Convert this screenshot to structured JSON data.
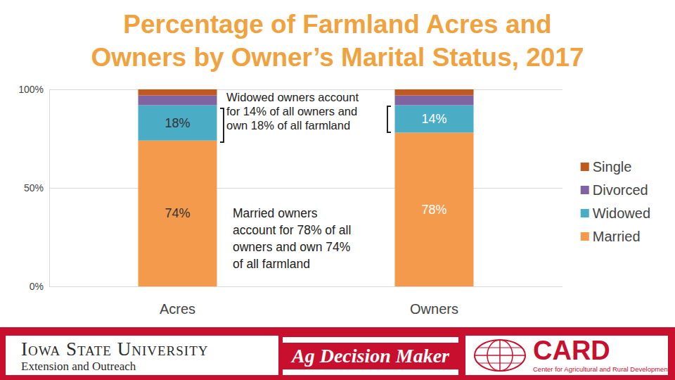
{
  "chart_data": {
    "type": "bar",
    "stacked": true,
    "title": [
      "Percentage of Farmland Acres and",
      "Owners by Owner’s Marital Status, 2017"
    ],
    "categories": [
      "Acres",
      "Owners"
    ],
    "series": [
      {
        "name": "Married",
        "color": "#f39a4c",
        "values": [
          74,
          78
        ],
        "data_labels": true,
        "value_labels": [
          "74%",
          "78%"
        ]
      },
      {
        "name": "Widowed",
        "color": "#4bacc6",
        "values": [
          18,
          14
        ],
        "data_labels": true,
        "value_labels": [
          "18%",
          "14%"
        ]
      },
      {
        "name": "Divorced",
        "color": "#8064a2",
        "values": [
          5,
          5
        ],
        "data_labels": false
      },
      {
        "name": "Single",
        "color": "#c0581f",
        "values": [
          3,
          3
        ],
        "data_labels": false
      }
    ],
    "ylim": [
      0,
      100
    ],
    "yticks": [
      {
        "value": 0,
        "label": "0%"
      },
      {
        "value": 50,
        "label": "50%"
      },
      {
        "value": 100,
        "label": "100%"
      }
    ],
    "grid": true,
    "legend": "right",
    "annotations": [
      [
        "Widowed owners account",
        "for 14% of all owners and",
        "own 18% of all farmland"
      ],
      [
        "Married owners",
        "account for 78% of all",
        "owners and own 74%",
        "of all farmland"
      ]
    ]
  },
  "footer": {
    "left": [
      "Iowa State University",
      "Extension and Outreach"
    ],
    "center": "Ag Decision Maker",
    "right": [
      "CARD",
      "Center for Agricultural and Rural Development"
    ]
  }
}
